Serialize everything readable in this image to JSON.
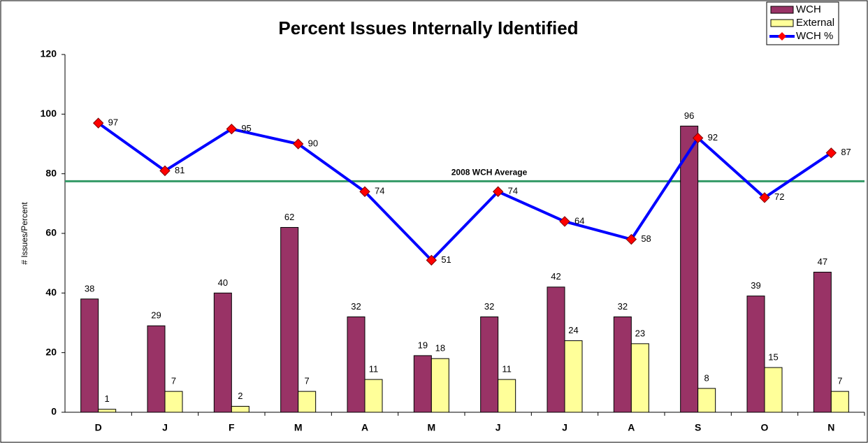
{
  "chart_data": {
    "type": "combo",
    "title": "Percent Issues Internally Identified",
    "y_label": "# Issues/Percent",
    "categories": [
      "D",
      "J",
      "F",
      "M",
      "A",
      "M",
      "J",
      "J",
      "A",
      "S",
      "O",
      "N"
    ],
    "series": [
      {
        "name": "WCH",
        "type": "bar",
        "color": "#993366",
        "values": [
          38,
          29,
          40,
          62,
          32,
          19,
          32,
          42,
          32,
          96,
          39,
          47
        ]
      },
      {
        "name": "External",
        "type": "bar",
        "color": "#ffff99",
        "values": [
          1,
          7,
          2,
          7,
          11,
          18,
          11,
          24,
          23,
          8,
          15,
          7
        ]
      },
      {
        "name": "WCH %",
        "type": "line",
        "color": "#0000ff",
        "marker_color": "#ff0000",
        "values": [
          97,
          81,
          95,
          90,
          74,
          51,
          74,
          64,
          58,
          92,
          72,
          87
        ]
      }
    ],
    "reference_line": {
      "label": "2008 WCH Average",
      "value": 77.5,
      "color": "#339966"
    },
    "ylim": [
      0,
      120
    ],
    "yticks": [
      0,
      20,
      40,
      60,
      80,
      100,
      120
    ],
    "grid": false,
    "legend": "top-right"
  }
}
